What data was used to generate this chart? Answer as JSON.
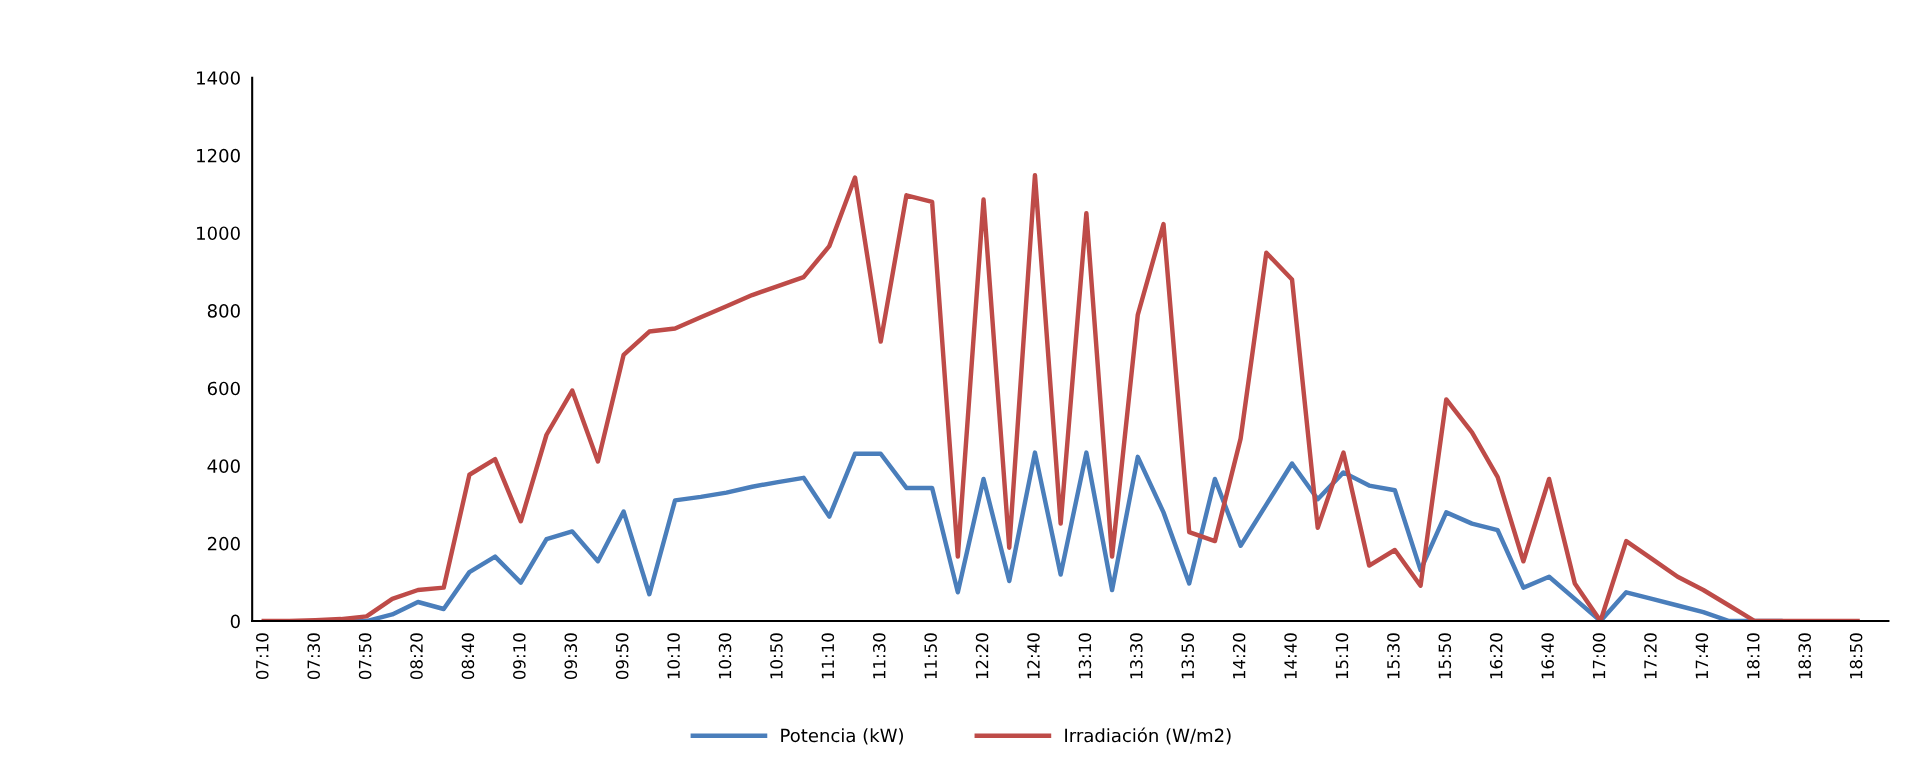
{
  "chart_data": {
    "type": "line",
    "categories": [
      "07:10",
      null,
      "07:30",
      null,
      "07:50",
      null,
      "08:20",
      null,
      "08:40",
      null,
      "09:10",
      null,
      "09:30",
      null,
      "09:50",
      null,
      "10:10",
      null,
      "10:30",
      null,
      "10:50",
      null,
      "11:10",
      null,
      "11:30",
      null,
      "11:50",
      null,
      "12:20",
      null,
      "12:40",
      null,
      "13:10",
      null,
      "13:30",
      null,
      "13:50",
      null,
      "14:20",
      null,
      "14:40",
      null,
      "15:10",
      null,
      "15:30",
      null,
      "15:50",
      null,
      "16:20",
      null,
      "16:40",
      null,
      "17:00",
      null,
      "17:20",
      null,
      "17:40",
      null,
      "18:10",
      null,
      "18:30",
      null,
      "18:50"
    ],
    "series": [
      {
        "name": "Potencia (kW)",
        "color": "#4a7ebb",
        "values": [
          null,
          null,
          null,
          0,
          0,
          17,
          49,
          31,
          126,
          166,
          99,
          211,
          231,
          154,
          282,
          69,
          311,
          320,
          331,
          346,
          358,
          369,
          269,
          431,
          431,
          343,
          343,
          74,
          366,
          103,
          434,
          120,
          434,
          80,
          423,
          280,
          97,
          366,
          194,
          300,
          406,
          314,
          383,
          349,
          337,
          131,
          280,
          251,
          234,
          86,
          114,
          57,
          0,
          74,
          57,
          40,
          23,
          0,
          0,
          0,
          null,
          null,
          null
        ]
      },
      {
        "name": "Irradiación (W/m2)",
        "color": "#be4b48",
        "values": [
          0,
          0,
          2,
          5,
          12,
          57,
          80,
          86,
          377,
          417,
          257,
          480,
          594,
          411,
          686,
          746,
          754,
          783,
          811,
          840,
          863,
          886,
          966,
          1143,
          720,
          1097,
          1080,
          166,
          1086,
          189,
          1149,
          251,
          1051,
          166,
          789,
          1023,
          229,
          206,
          470,
          949,
          880,
          240,
          434,
          143,
          183,
          91,
          571,
          486,
          371,
          154,
          366,
          97,
          0,
          206,
          160,
          114,
          80,
          40,
          0,
          0,
          0,
          0,
          0
        ]
      }
    ],
    "ylim": [
      0,
      1400
    ],
    "yticks": [
      0,
      200,
      400,
      600,
      800,
      1000,
      1200,
      1400
    ],
    "grid": false,
    "legend": "bottom",
    "marker": "none",
    "line_style": "solid"
  }
}
